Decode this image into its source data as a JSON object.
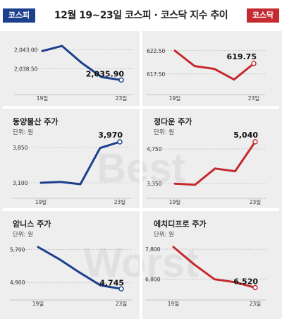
{
  "header": {
    "title": "12월 19~23일 코스피 · 코스닥 지수 추이",
    "left_tag": "코스피",
    "right_tag": "코스닥",
    "left_color": "#1d3f8c",
    "right_color": "#c42a2f"
  },
  "watermark": [
    "Best",
    "Worst"
  ],
  "chart_data": [
    {
      "type": "line",
      "title": "",
      "subtitle": "",
      "market": "코스피",
      "color": "#1d3f8c",
      "x": [
        "19일",
        "20일",
        "21일",
        "22일",
        "23일"
      ],
      "y": [
        2042.7,
        2043.9,
        2039.9,
        2036.6,
        2035.9
      ],
      "end_label": "2,035.90",
      "yticks": [
        2043.0,
        2038.5
      ],
      "ytick_labels": [
        "2,043.00",
        "2,038.50"
      ],
      "xtick_labels": [
        "19일",
        "23일"
      ],
      "ylim": [
        2034.8,
        2045.4
      ]
    },
    {
      "type": "line",
      "title": "",
      "subtitle": "",
      "market": "코스닥",
      "color": "#c42a2f",
      "x": [
        "19일",
        "20일",
        "21일",
        "22일",
        "23일"
      ],
      "y": [
        622.5,
        619.2,
        618.6,
        616.3,
        619.75
      ],
      "end_label": "619.75",
      "yticks": [
        622.5,
        617.5
      ],
      "ytick_labels": [
        "622.50",
        "617.50"
      ],
      "xtick_labels": [
        "19일",
        "23일"
      ],
      "ylim": [
        615.2,
        624.9
      ]
    },
    {
      "type": "line",
      "title": "동양물산 주가",
      "subtitle": "단위: 원",
      "market": "코스피",
      "color": "#1d3f8c",
      "x": [
        "19일",
        "20일",
        "21일",
        "22일",
        "23일"
      ],
      "y": [
        3100,
        3120,
        3070,
        3840,
        3970
      ],
      "end_label": "3,970",
      "yticks": [
        3850,
        3100
      ],
      "ytick_labels": [
        "3,850",
        "3,100"
      ],
      "xtick_labels": [
        "19일",
        "23일"
      ],
      "ylim": [
        2935,
        4135
      ]
    },
    {
      "type": "line",
      "title": "정다운 주가",
      "subtitle": "단위: 원",
      "market": "코스닥",
      "color": "#c42a2f",
      "x": [
        "19일",
        "20일",
        "21일",
        "22일",
        "23일"
      ],
      "y": [
        3350,
        3300,
        3960,
        3850,
        5040
      ],
      "end_label": "5,040",
      "yticks": [
        4750,
        3350
      ],
      "ytick_labels": [
        "4,750",
        "3,350"
      ],
      "xtick_labels": [
        "19일",
        "23일"
      ],
      "ylim": [
        3070,
        5350
      ]
    },
    {
      "type": "line",
      "title": "암니스 주가",
      "subtitle": "단위: 원",
      "market": "코스피",
      "color": "#1d3f8c",
      "x": [
        "19일",
        "20일",
        "21일",
        "22일",
        "23일"
      ],
      "y": [
        5760,
        5470,
        5140,
        4830,
        4745
      ],
      "end_label": "4,745",
      "yticks": [
        5700,
        4900
      ],
      "ytick_labels": [
        "5,700",
        "4,900"
      ],
      "xtick_labels": [
        "19일",
        "23일"
      ],
      "ylim": [
        4630,
        6000
      ]
    },
    {
      "type": "line",
      "title": "에치디프로 주가",
      "subtitle": "단위: 원",
      "market": "코스닥",
      "color": "#c42a2f",
      "x": [
        "19일",
        "20일",
        "21일",
        "22일",
        "23일"
      ],
      "y": [
        7870,
        7300,
        6800,
        6700,
        6520
      ],
      "end_label": "6,520",
      "yticks": [
        7800,
        6800
      ],
      "ytick_labels": [
        "7,800",
        "6,800"
      ],
      "xtick_labels": [
        "19일",
        "23일"
      ],
      "ylim": [
        6320,
        8200
      ]
    }
  ]
}
